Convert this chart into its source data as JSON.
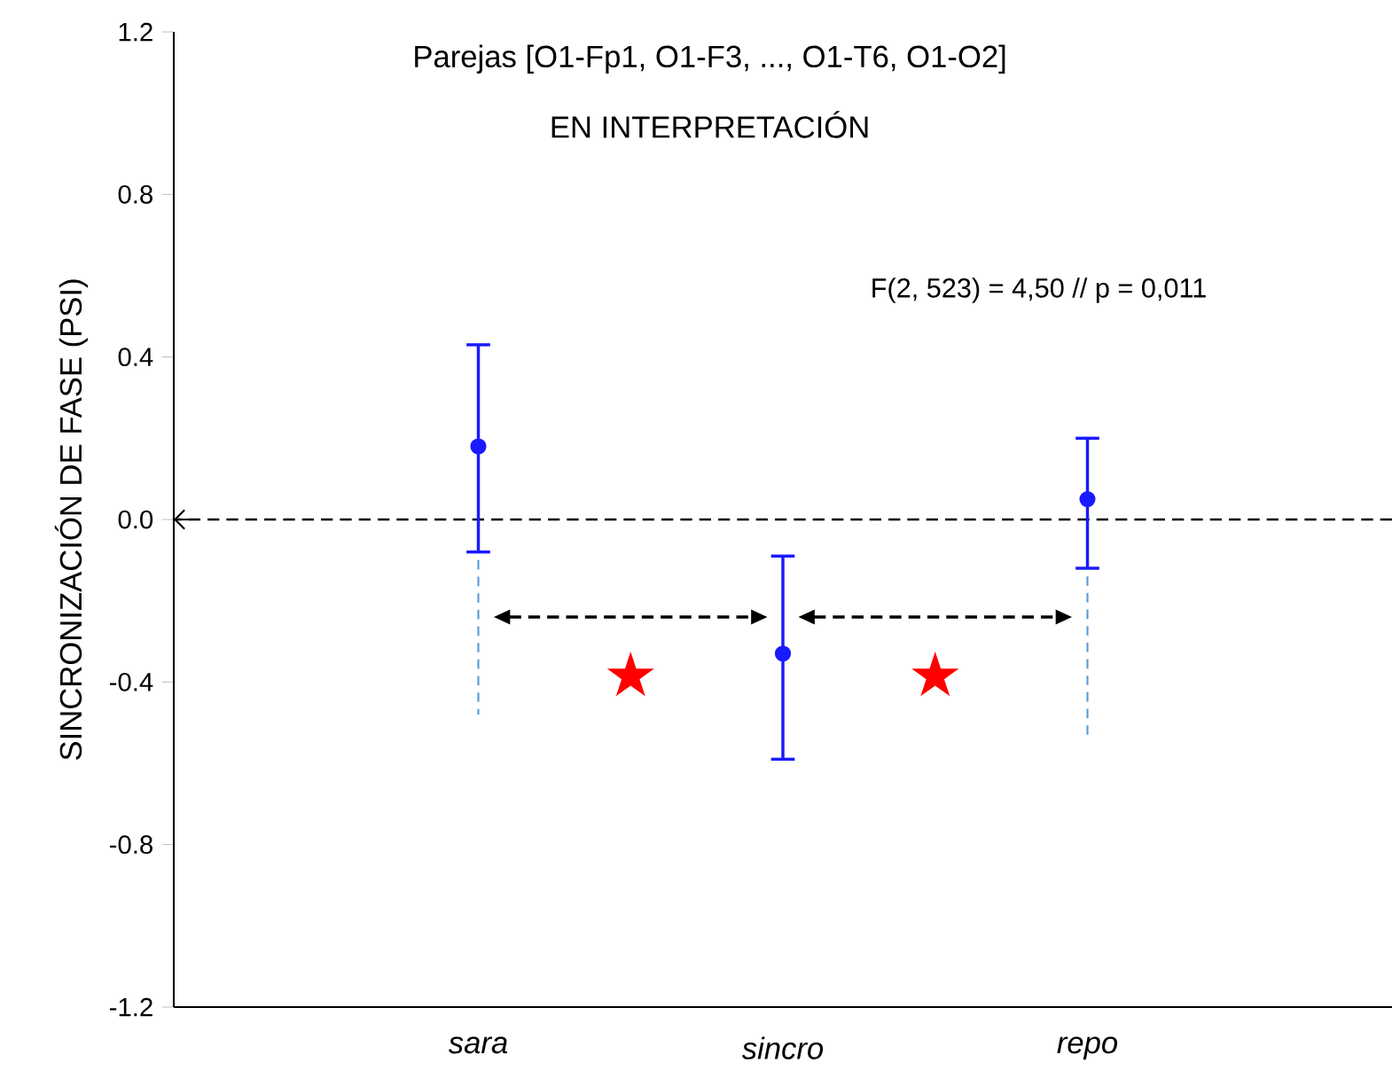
{
  "chart_data": {
    "type": "scatter",
    "title": "Parejas [O1-Fp1, O1-F3, ..., O1-T6, O1-O2]",
    "subtitle": "EN INTERPRETACIÓN",
    "ylabel": "SINCRONIZACIÓN DE FASE (PSI)",
    "annotations": [
      "F(2, 523) = 4,50 // p = 0,011",
      "★",
      "★"
    ],
    "categories": [
      "sara",
      "sincro",
      "repo"
    ],
    "ylim": [
      -1.2,
      1.2
    ],
    "yticks": [
      -1.2,
      -0.8,
      -0.4,
      {
        "value": 0,
        "label": "0.0"
      },
      0.4,
      0.8,
      1.2
    ],
    "series": [
      {
        "color": "#1a1aff",
        "marker": "circle",
        "values": [
          0.18,
          -0.33,
          0.05
        ],
        "errors": [
          [
            -0.08,
            0.43
          ],
          [
            -0.59,
            -0.09
          ],
          [
            -0.12,
            0.2
          ]
        ]
      }
    ],
    "ref_lines": [
      {
        "axis": "y",
        "value": 0,
        "color": "#000000",
        "line_style": "dashed"
      }
    ]
  }
}
